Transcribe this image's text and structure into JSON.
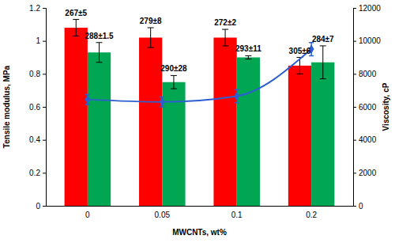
{
  "chart_data": {
    "type": "bar",
    "x_label": "MWCNTs, wt%",
    "y_label": "Tensile modulus, MPa",
    "y2_label": "Viscosity, cP",
    "categories": [
      "0",
      "0.05",
      "0.1",
      "0.2"
    ],
    "ylim": [
      0,
      1.2
    ],
    "yticks": [
      0,
      0.2,
      0.4,
      0.6,
      0.8,
      1,
      1.2
    ],
    "y2lim": [
      0,
      12000
    ],
    "y2ticks": [
      0,
      2000,
      4000,
      6000,
      8000,
      10000,
      12000
    ],
    "grid": false,
    "series": [
      {
        "type": "bar",
        "color": "#ff0000",
        "values": [
          1.08,
          1.02,
          1.02,
          0.85
        ],
        "errors": [
          0.05,
          0.06,
          0.05,
          0.05
        ],
        "annotations": [
          "267±5",
          "279±8",
          "272±2",
          "305±6"
        ]
      },
      {
        "type": "bar",
        "color": "#00a651",
        "values": [
          0.93,
          0.75,
          0.9,
          0.87
        ],
        "errors": [
          0.06,
          0.04,
          0.01,
          0.1
        ],
        "annotations": [
          "288±1.5",
          "290±28",
          "293±11",
          "284±7"
        ]
      },
      {
        "type": "line",
        "axis": "y2",
        "color": "#2e5fd1",
        "marker": "diamond",
        "line_style": "solid",
        "values": [
          6450,
          6300,
          6650,
          9500
        ],
        "errors": [
          300,
          300,
          400,
          400
        ]
      }
    ]
  }
}
